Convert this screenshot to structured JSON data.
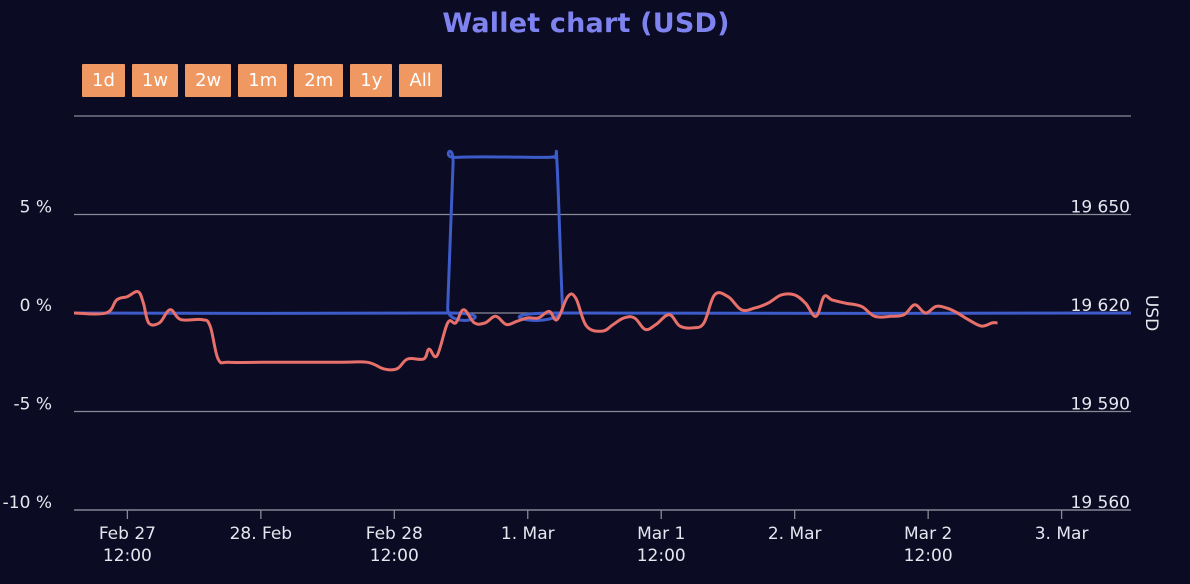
{
  "title": "Wallet chart (USD)",
  "range_buttons": [
    "1d",
    "1w",
    "2w",
    "1m",
    "2m",
    "1y",
    "All"
  ],
  "colors": {
    "background": "#0b0b24",
    "title": "#7f83f0",
    "button": "#f09862",
    "grid": "#8a8a96",
    "series_percent": "#3d5bc9",
    "series_usd": "#e8706a"
  },
  "chart_data": {
    "type": "line",
    "title": "Wallet chart (USD)",
    "legend": "none",
    "grid": true,
    "x_ticks": [
      {
        "pos": 0.5,
        "lines": [
          "Feb 27",
          "12:00"
        ]
      },
      {
        "pos": 1.0,
        "lines": [
          "28. Feb"
        ]
      },
      {
        "pos": 1.5,
        "lines": [
          "Feb 28",
          "12:00"
        ]
      },
      {
        "pos": 2.0,
        "lines": [
          "1. Mar"
        ]
      },
      {
        "pos": 2.5,
        "lines": [
          "Mar 1",
          "12:00"
        ]
      },
      {
        "pos": 3.0,
        "lines": [
          "2. Mar"
        ]
      },
      {
        "pos": 3.5,
        "lines": [
          "Mar 2",
          "12:00"
        ]
      },
      {
        "pos": 4.0,
        "lines": [
          "3. Mar"
        ]
      }
    ],
    "x_range": [
      0.3,
      4.26
    ],
    "y_left": {
      "range": [
        -10,
        10
      ],
      "ticks": [
        5,
        0,
        -5,
        -10
      ],
      "tick_labels": [
        "5 %",
        "0 %",
        "-5 %",
        "-10 %"
      ]
    },
    "y_right": {
      "label": "USD",
      "range": [
        19560,
        19680
      ],
      "ticks": [
        19650,
        19620,
        19590,
        19560
      ],
      "tick_labels": [
        "19 650",
        "19 620",
        "19 590",
        "19 560"
      ]
    },
    "series": [
      {
        "axis": "left",
        "unit": "%",
        "points": [
          [
            0.3,
            0
          ],
          [
            1.69,
            0
          ],
          [
            1.7,
            0.3
          ],
          [
            1.72,
            7.5
          ],
          [
            1.73,
            7.9
          ],
          [
            2.05,
            7.9
          ],
          [
            2.1,
            7.9
          ],
          [
            2.11,
            7.5
          ],
          [
            2.13,
            0.3
          ],
          [
            2.14,
            0
          ],
          [
            4.26,
            0
          ]
        ]
      },
      {
        "axis": "right",
        "unit": "USD",
        "points": [
          [
            0.3,
            19620
          ],
          [
            0.42,
            19620
          ],
          [
            0.46,
            19624
          ],
          [
            0.5,
            19625
          ],
          [
            0.54,
            19626.5
          ],
          [
            0.56,
            19623
          ],
          [
            0.58,
            19617
          ],
          [
            0.62,
            19617
          ],
          [
            0.66,
            19621
          ],
          [
            0.7,
            19618
          ],
          [
            0.78,
            19618
          ],
          [
            0.81,
            19616
          ],
          [
            0.84,
            19606
          ],
          [
            0.88,
            19605
          ],
          [
            1.0,
            19605
          ],
          [
            1.3,
            19605
          ],
          [
            1.4,
            19605
          ],
          [
            1.46,
            19603
          ],
          [
            1.51,
            19603
          ],
          [
            1.55,
            19606
          ],
          [
            1.61,
            19606
          ],
          [
            1.63,
            19609
          ],
          [
            1.66,
            19607
          ],
          [
            1.7,
            19617
          ],
          [
            1.73,
            19617
          ],
          [
            1.76,
            19621
          ],
          [
            1.8,
            19617
          ],
          [
            1.84,
            19617
          ],
          [
            1.88,
            19619
          ],
          [
            1.92,
            19616.5
          ],
          [
            1.96,
            19617.5
          ],
          [
            2.0,
            19618.5
          ],
          [
            2.04,
            19618.5
          ],
          [
            2.08,
            19620.5
          ],
          [
            2.11,
            19618
          ],
          [
            2.15,
            19625
          ],
          [
            2.18,
            19624.5
          ],
          [
            2.22,
            19616
          ],
          [
            2.28,
            19614.5
          ],
          [
            2.32,
            19616.5
          ],
          [
            2.36,
            19618.5
          ],
          [
            2.4,
            19618.5
          ],
          [
            2.44,
            19615
          ],
          [
            2.48,
            19616.5
          ],
          [
            2.53,
            19619.5
          ],
          [
            2.57,
            19616
          ],
          [
            2.62,
            19615.5
          ],
          [
            2.66,
            19617
          ],
          [
            2.7,
            19625.5
          ],
          [
            2.75,
            19625
          ],
          [
            2.8,
            19621
          ],
          [
            2.85,
            19621.5
          ],
          [
            2.9,
            19623
          ],
          [
            2.95,
            19625.5
          ],
          [
            3.0,
            19625.5
          ],
          [
            3.04,
            19623
          ],
          [
            3.08,
            19619
          ],
          [
            3.11,
            19625
          ],
          [
            3.14,
            19624
          ],
          [
            3.19,
            19623
          ],
          [
            3.25,
            19622
          ],
          [
            3.3,
            19619
          ],
          [
            3.36,
            19619
          ],
          [
            3.41,
            19619.5
          ],
          [
            3.45,
            19622.5
          ],
          [
            3.49,
            19620
          ],
          [
            3.53,
            19622
          ],
          [
            3.57,
            19621.5
          ],
          [
            3.61,
            19620
          ],
          [
            3.65,
            19618
          ],
          [
            3.7,
            19616
          ],
          [
            3.74,
            19617
          ],
          [
            3.76,
            19617
          ]
        ]
      }
    ]
  }
}
